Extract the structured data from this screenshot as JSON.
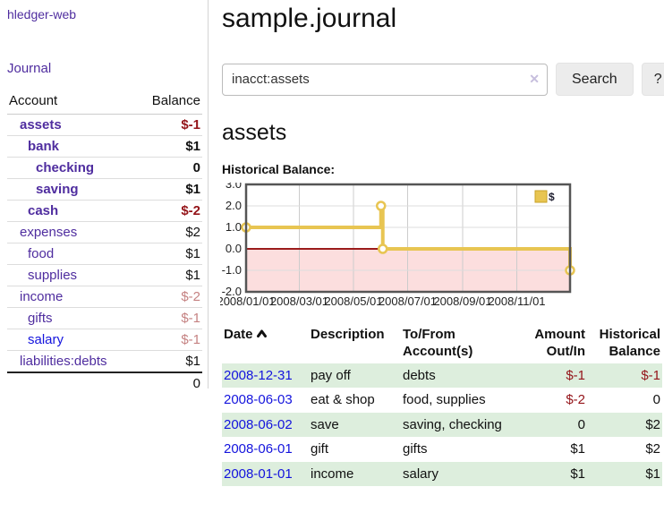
{
  "colors": {
    "link_purple": "#4f2d9f",
    "link_blue": "#1414dd",
    "negative": "#941419",
    "negative_muted": "#c58282",
    "row_highlight": "#ddeedd",
    "chart_line_gold": "#e8c552",
    "chart_negative_region": "#fcdede",
    "chart_zero_line": "#9b1c1c"
  },
  "sidebar": {
    "brand": "hledger-web",
    "journal_link": "Journal",
    "accounts": {
      "headers": {
        "account": "Account",
        "balance": "Balance"
      },
      "rows": [
        {
          "account": "assets",
          "depth": 1,
          "bold": true,
          "balance": "$-1",
          "balance_style": "neg"
        },
        {
          "account": "bank",
          "depth": 2,
          "bold": true,
          "balance": "$1",
          "balance_style": ""
        },
        {
          "account": "checking",
          "depth": 3,
          "bold": true,
          "balance": "0",
          "balance_style": ""
        },
        {
          "account": "saving",
          "depth": 3,
          "bold": true,
          "balance": "$1",
          "balance_style": ""
        },
        {
          "account": "cash",
          "depth": 2,
          "bold": true,
          "balance": "$-2",
          "balance_style": "neg"
        },
        {
          "account": "expenses",
          "depth": 1,
          "bold": false,
          "balance": "$2",
          "balance_style": ""
        },
        {
          "account": "food",
          "depth": 2,
          "bold": false,
          "balance": "$1",
          "balance_style": ""
        },
        {
          "account": "supplies",
          "depth": 2,
          "bold": false,
          "balance": "$1",
          "balance_style": ""
        },
        {
          "account": "income",
          "depth": 1,
          "bold": false,
          "balance": "$-2",
          "balance_style": "negmuted"
        },
        {
          "account": "gifts",
          "depth": 2,
          "bold": false,
          "balance": "$-1",
          "balance_style": "negmuted"
        },
        {
          "account": "salary",
          "depth": 2,
          "bold": false,
          "balance": "$-1",
          "balance_style": "negmuted",
          "link_style": "blue"
        },
        {
          "account": "liabilities:debts",
          "depth": 1,
          "bold": false,
          "balance": "$1",
          "balance_style": ""
        }
      ],
      "total": "0"
    }
  },
  "main": {
    "title": "sample.journal",
    "search": {
      "value": "inacct:assets",
      "clear": "✕",
      "button": "Search",
      "help": "?"
    },
    "account_heading": "assets",
    "chart_heading": "Historical Balance:"
  },
  "chart_data": {
    "type": "line",
    "step": true,
    "title": "Historical Balance",
    "legend": [
      "$"
    ],
    "legend_position": "top-right",
    "points": [
      [
        "2008-01-01",
        1.0
      ],
      [
        "2008-06-01",
        2.0
      ],
      [
        "2008-06-03",
        0.0
      ],
      [
        "2008-12-31",
        -1.0
      ]
    ],
    "xrange": [
      "2008-01-01",
      "2008-12-31"
    ],
    "ylim": [
      -2,
      3
    ],
    "yticks": [
      "3.0",
      "2.0",
      "1.0",
      "0.0",
      "-1.0",
      "-2.0"
    ],
    "xticks": [
      "2008/01/01",
      "2008/03/01",
      "2008/05/01",
      "2008/07/01",
      "2008/09/01",
      "2008/11/01"
    ],
    "grid": true,
    "negative_region_shaded": true
  },
  "register": {
    "headers": {
      "date": "Date",
      "description": "Description",
      "accounts": "To/From Account(s)",
      "amount": "Amount Out/In",
      "balance": "Historical Balance"
    },
    "rows": [
      {
        "date": "2008-12-31",
        "description": "pay off",
        "accounts": "debts",
        "amount": "$-1",
        "balance": "$-1",
        "amount_neg": true,
        "balance_neg": true,
        "highlight": true
      },
      {
        "date": "2008-06-03",
        "description": "eat & shop",
        "accounts": "food, supplies",
        "amount": "$-2",
        "balance": "0",
        "amount_neg": true,
        "balance_neg": false,
        "highlight": false
      },
      {
        "date": "2008-06-02",
        "description": "save",
        "accounts": "saving, checking",
        "amount": "0",
        "balance": "$2",
        "amount_neg": false,
        "balance_neg": false,
        "highlight": true
      },
      {
        "date": "2008-06-01",
        "description": "gift",
        "accounts": "gifts",
        "amount": "$1",
        "balance": "$2",
        "amount_neg": false,
        "balance_neg": false,
        "highlight": false
      },
      {
        "date": "2008-01-01",
        "description": "income",
        "accounts": "salary",
        "amount": "$1",
        "balance": "$1",
        "amount_neg": false,
        "balance_neg": false,
        "highlight": true
      }
    ]
  }
}
